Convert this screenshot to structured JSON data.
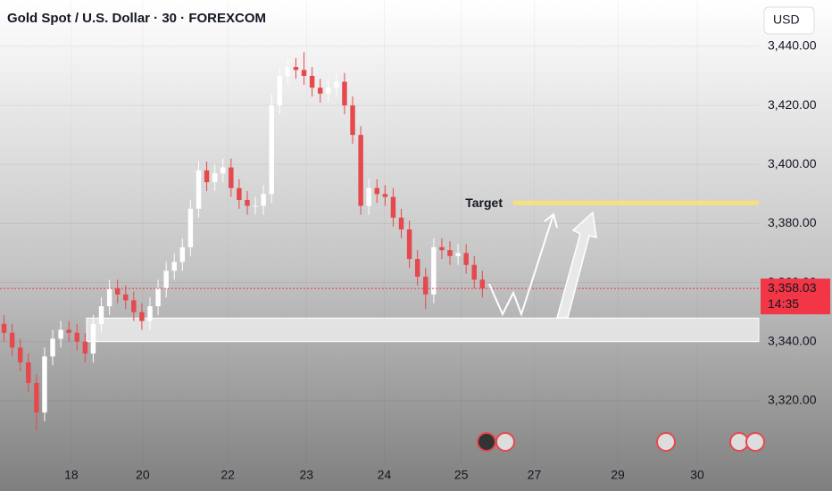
{
  "chart_data": {
    "type": "candlestick",
    "title": "Gold Spot / U.S. Dollar · 30 · FOREXCOM",
    "currency": "USD",
    "candles": {
      "open": [
        3346,
        3343,
        3338,
        3333,
        3326,
        3316,
        3335,
        3341,
        3344,
        3343,
        3340,
        3336,
        3346,
        3352,
        3358,
        3356,
        3354,
        3350,
        3347,
        3352,
        3358,
        3364,
        3367,
        3372,
        3385,
        3398,
        3394,
        3397,
        3399,
        3392,
        3388,
        3386,
        3386,
        3390,
        3420,
        3430,
        3433,
        3432,
        3430,
        3426,
        3424,
        3426,
        3428,
        3420,
        3410,
        3386,
        3392,
        3390,
        3389,
        3382,
        3378,
        3368,
        3362,
        3356,
        3372,
        3371,
        3369,
        3370,
        3366,
        3361
      ],
      "high": [
        3349,
        3346,
        3341,
        3336,
        3329,
        3338,
        3344,
        3347,
        3347,
        3346,
        3343,
        3349,
        3355,
        3361,
        3361,
        3359,
        3357,
        3353,
        3355,
        3361,
        3367,
        3370,
        3375,
        3388,
        3401,
        3401,
        3400,
        3402,
        3402,
        3395,
        3391,
        3389,
        3393,
        3424,
        3433,
        3436,
        3436,
        3438,
        3433,
        3429,
        3429,
        3431,
        3431,
        3423,
        3413,
        3395,
        3395,
        3393,
        3392,
        3385,
        3381,
        3371,
        3365,
        3375,
        3375,
        3374,
        3373,
        3373,
        3369,
        3364
      ],
      "low": [
        3340,
        3335,
        3330,
        3323,
        3310,
        3313,
        3332,
        3338,
        3340,
        3337,
        3333,
        3333,
        3343,
        3349,
        3353,
        3351,
        3347,
        3344,
        3344,
        3349,
        3355,
        3361,
        3364,
        3369,
        3382,
        3391,
        3391,
        3394,
        3389,
        3385,
        3383,
        3383,
        3383,
        3387,
        3417,
        3427,
        3429,
        3427,
        3423,
        3421,
        3421,
        3423,
        3417,
        3407,
        3383,
        3383,
        3387,
        3386,
        3379,
        3375,
        3365,
        3359,
        3351,
        3353,
        3368,
        3366,
        3366,
        3363,
        3358,
        3355
      ],
      "close": [
        3343,
        3338,
        3333,
        3326,
        3316,
        3335,
        3341,
        3344,
        3343,
        3340,
        3336,
        3346,
        3352,
        3358,
        3356,
        3354,
        3350,
        3347,
        3352,
        3358,
        3364,
        3367,
        3372,
        3385,
        3398,
        3394,
        3397,
        3399,
        3392,
        3388,
        3386,
        3386,
        3390,
        3420,
        3430,
        3433,
        3432,
        3430,
        3426,
        3424,
        3426,
        3428,
        3420,
        3410,
        3386,
        3392,
        3390,
        3389,
        3382,
        3378,
        3368,
        3362,
        3356,
        3372,
        3371,
        3369,
        3370,
        3366,
        3361,
        3358
      ]
    },
    "up_color": "#ffffff",
    "down_color": "#e5484d",
    "xlim": [
      0,
      93.6
    ],
    "xticks": [
      {
        "value": 8.8,
        "label": "18"
      },
      {
        "value": 17.6,
        "label": "20"
      },
      {
        "value": 28.1,
        "label": "22"
      },
      {
        "value": 37.8,
        "label": "23"
      },
      {
        "value": 47.4,
        "label": "24"
      },
      {
        "value": 56.9,
        "label": "25"
      },
      {
        "value": 65.9,
        "label": "27"
      },
      {
        "value": 76.2,
        "label": "29"
      },
      {
        "value": 86.0,
        "label": "30"
      }
    ],
    "ylim": [
      3299.1,
      3455.7
    ],
    "yticks": [
      {
        "value": 3320,
        "label": "3,320.00"
      },
      {
        "value": 3340,
        "label": "3,340.00"
      },
      {
        "value": 3360,
        "label": "3,360.00"
      },
      {
        "value": 3380,
        "label": "3,380.00"
      },
      {
        "value": 3400,
        "label": "3,400.00"
      },
      {
        "value": 3420,
        "label": "3,420.00"
      },
      {
        "value": 3440,
        "label": "3,440.00"
      }
    ],
    "support_zone": [
      3340,
      3348
    ],
    "target": {
      "label": "Target",
      "value": 3387,
      "color": "#f7e27a"
    },
    "last_price": {
      "value": 3358.03,
      "label": "3,358.03",
      "countdown": "14:35",
      "color": "#f23645"
    }
  }
}
